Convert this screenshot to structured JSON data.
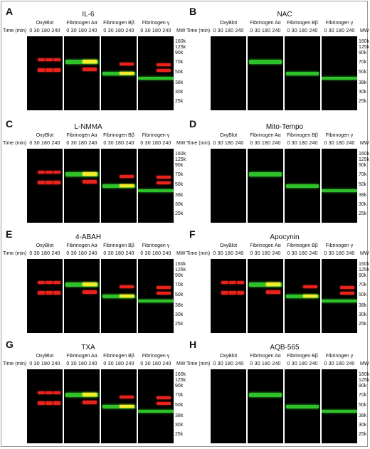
{
  "lane_labels": [
    "OxyBlot",
    "Fibrinogen Aα",
    "Fibrinogen Bβ",
    "Fibrinogen γ"
  ],
  "time_label": "Time (min)",
  "time_values": "0 30 180 240",
  "mw_header": "MW",
  "mw_markers": [
    "160k",
    "125k",
    "90k",
    "70k",
    "50k",
    "38k",
    "30k",
    "25k"
  ],
  "colors": {
    "red": "#e8231c",
    "green": "#2fc12a",
    "yellow": "#f5ec2a",
    "background": "#000000"
  },
  "panels": [
    {
      "letter": "A",
      "title": "IL-6",
      "oxidized": true
    },
    {
      "letter": "B",
      "title": "NAC",
      "oxidized": false
    },
    {
      "letter": "C",
      "title": "L-NMMA",
      "oxidized": true
    },
    {
      "letter": "D",
      "title": "Mito-Tempo",
      "oxidized": false
    },
    {
      "letter": "E",
      "title": "4-ABAH",
      "oxidized": true
    },
    {
      "letter": "F",
      "title": "Apocynin",
      "oxidized": true
    },
    {
      "letter": "G",
      "title": "TXA",
      "oxidized": true
    },
    {
      "letter": "H",
      "title": "AQB-565",
      "oxidized": false
    }
  ]
}
